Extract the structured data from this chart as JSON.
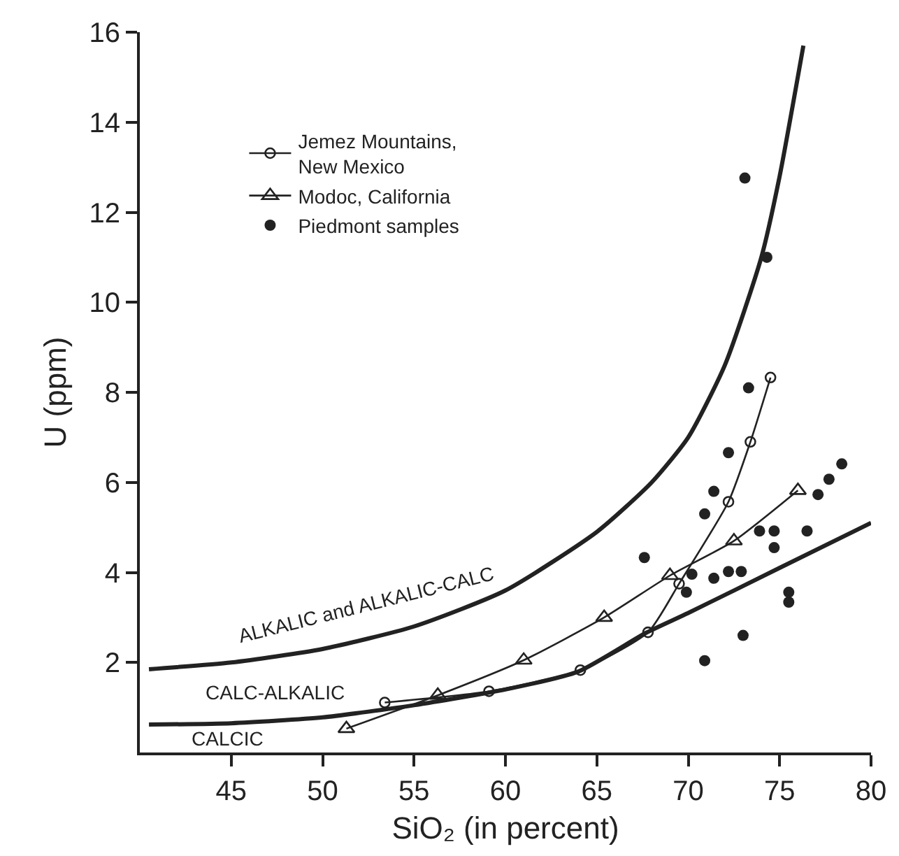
{
  "chart_data": {
    "type": "line",
    "xlabel": "SiO₂ (in percent)",
    "ylabel": "U (ppm)",
    "xlim": [
      40,
      80
    ],
    "xticks": [
      45,
      50,
      55,
      60,
      65,
      70,
      75,
      80
    ],
    "ylim": [
      0,
      16
    ],
    "yticks": [
      2,
      4,
      6,
      8,
      10,
      12,
      14,
      16
    ],
    "grid": false,
    "legend": "top left",
    "series": [
      {
        "color": "#222222",
        "marker": "none",
        "x": [
          40.5,
          45,
          50,
          55,
          60,
          65,
          68,
          70,
          72,
          74,
          75,
          76.3
        ],
        "values": [
          1.85,
          2.0,
          2.3,
          2.8,
          3.6,
          4.9,
          6.0,
          7.0,
          8.6,
          11,
          12.8,
          15.7
        ]
      },
      {
        "color": "#222222",
        "marker": "none",
        "x": [
          40.5,
          45,
          50,
          55,
          60,
          64,
          67.7,
          70,
          75,
          80
        ],
        "values": [
          0.62,
          0.65,
          0.78,
          1.05,
          1.4,
          1.8,
          2.66,
          3.1,
          4.1,
          5.1
        ]
      },
      {
        "name": "Jemez Mountains,\nNew Mexico",
        "color": "#222222",
        "marker": "circle",
        "x": [
          53.4,
          59.1,
          64.1,
          67.8,
          69.5,
          72.2,
          73.4,
          74.5
        ],
        "values": [
          1.11,
          1.36,
          1.83,
          2.67,
          3.75,
          5.57,
          6.9,
          8.33
        ]
      },
      {
        "name": "Modoc, California",
        "color": "#222222",
        "marker": "triangle",
        "x": [
          51.3,
          56.3,
          61,
          65.4,
          69,
          72.5,
          76
        ],
        "values": [
          0.53,
          1.27,
          2.05,
          3.0,
          3.93,
          4.7,
          5.82
        ]
      },
      {
        "name": "Piedmont samples",
        "type": "scatter",
        "color": "#222222",
        "marker": "circle",
        "x": [
          73.1,
          74.3,
          73.3,
          72.2,
          71.4,
          70.9,
          67.6,
          70.2,
          69.9,
          71.4,
          72.2,
          72.9,
          73.9,
          74.7,
          74.7,
          76.5,
          77.1,
          77.7,
          78.4,
          75.5,
          75.5,
          73.0,
          70.9
        ],
        "values": [
          12.76,
          11.0,
          8.1,
          6.66,
          5.8,
          5.3,
          4.33,
          3.96,
          3.56,
          3.87,
          4.02,
          4.02,
          4.92,
          4.92,
          4.55,
          4.92,
          5.73,
          6.07,
          6.41,
          3.56,
          3.34,
          2.6,
          2.04
        ]
      }
    ],
    "annotations": [
      "ALKALIC and ALKALIC-CALC",
      "CALC-ALKALIC",
      "CALCIC"
    ]
  }
}
